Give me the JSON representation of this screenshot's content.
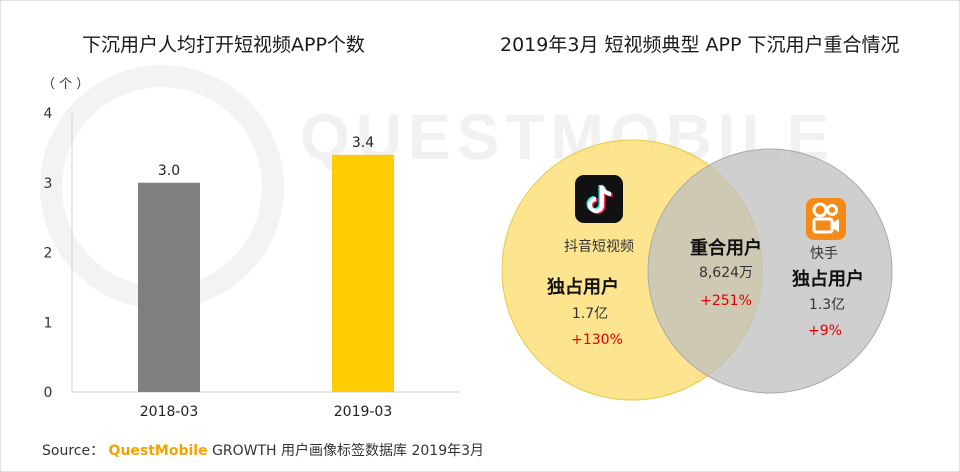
{
  "left_panel": {
    "title": "下沉用户人均打开短视频APP个数",
    "unit": "（ 个 ）"
  },
  "right_panel": {
    "title": "2019年3月 短视频典型 APP 下沉用户重合情况",
    "left_app": {
      "name": "抖音短视频",
      "segment": "独占用户",
      "value": "1.7亿",
      "growth": "+130%",
      "icon": "douyin-icon"
    },
    "overlap": {
      "segment": "重合用户",
      "value": "8,624万",
      "growth": "+251%"
    },
    "right_app": {
      "name": "快手",
      "segment": "独占用户",
      "value": "1.3亿",
      "growth": "+9%",
      "icon": "kuaishou-icon"
    }
  },
  "source": {
    "label": "Source：",
    "brand": "QuestMobile",
    "text": "GROWTH 用户画像标签数据库 2019年3月"
  },
  "watermark": "QUESTMOBILE",
  "colors": {
    "bar_2018": "#7f7f7f",
    "bar_2019": "#ffcc00",
    "circle_douyin": "#fbe17a",
    "circle_kuaishou": "#c9c9c9",
    "growth": "#e60000",
    "brand": "#f5a300"
  },
  "chart_data": {
    "type": "bar",
    "categories": [
      "2018-03",
      "2019-03"
    ],
    "values": [
      3.0,
      3.4
    ],
    "data_labels": [
      "3.0",
      "3.4"
    ],
    "ylim": [
      0,
      4
    ],
    "yticks": [
      0,
      1,
      2,
      3,
      4
    ],
    "ylabel": "（ 个 ）",
    "grid": false
  }
}
